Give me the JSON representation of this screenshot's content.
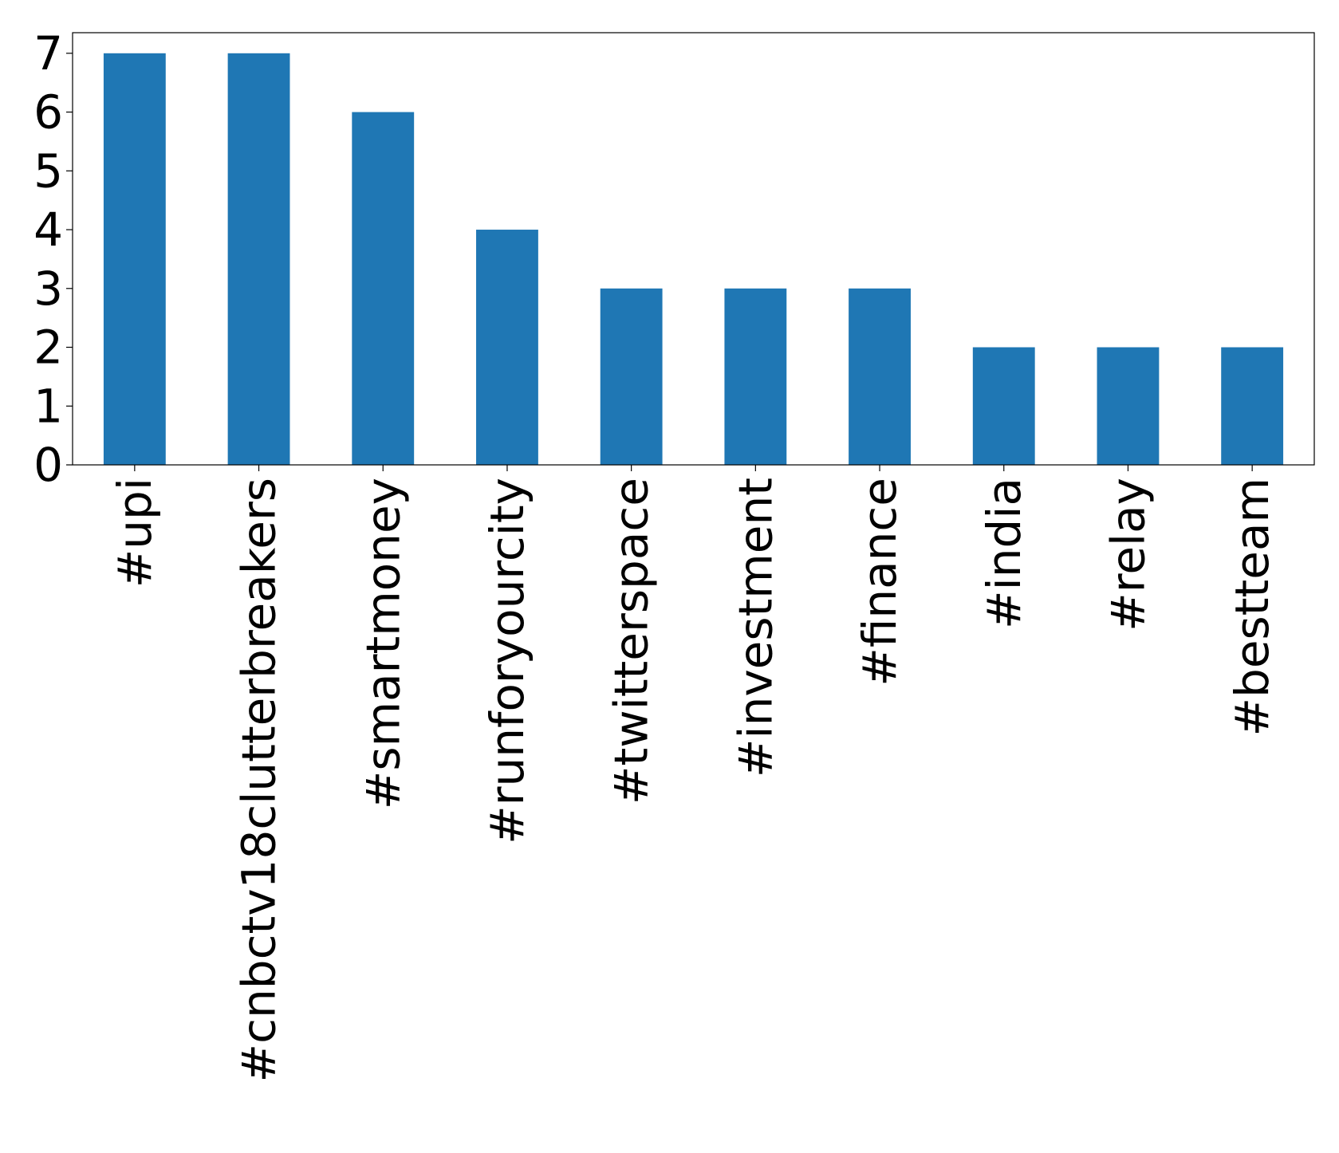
{
  "chart_data": {
    "type": "bar",
    "categories": [
      "#upi",
      "#cnbctv18clutterbreakers",
      "#smartmoney",
      "#runforyourcity",
      "#twitterspace",
      "#investment",
      "#finance",
      "#india",
      "#relay",
      "#bestteam"
    ],
    "values": [
      7,
      7,
      6,
      4,
      3,
      3,
      3,
      2,
      2,
      2
    ],
    "color": "#1f77b4",
    "ylim": [
      0,
      7.35
    ],
    "yticks": [
      0,
      1,
      2,
      3,
      4,
      5,
      6,
      7
    ],
    "grid": false
  }
}
